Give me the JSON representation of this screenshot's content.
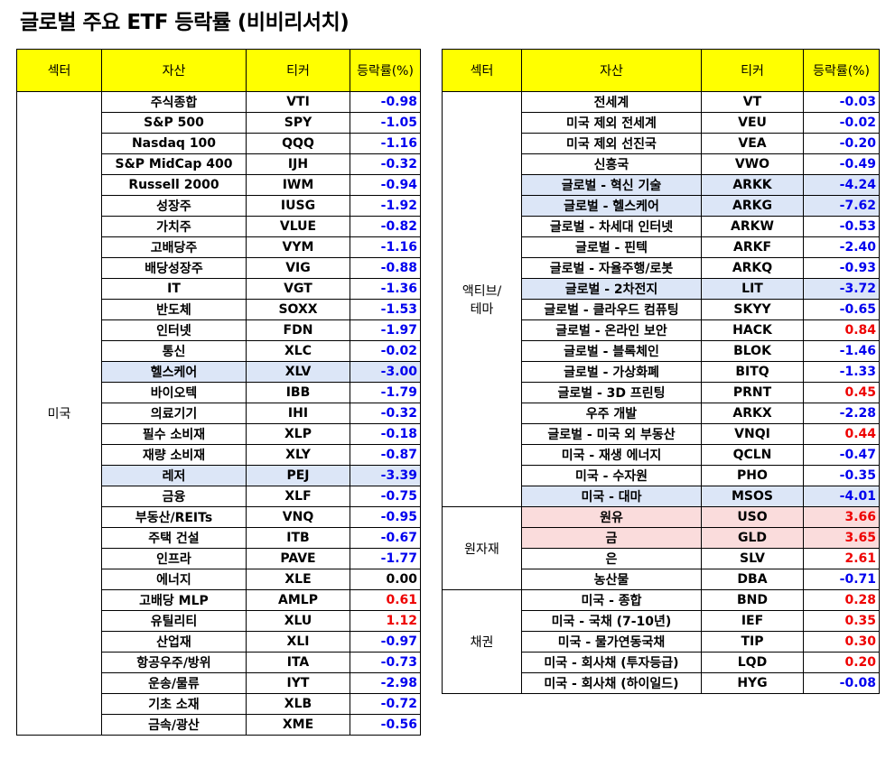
{
  "title": "글로벌 주요 ETF 등락률 (비비리서치)",
  "headers": {
    "sector": "섹터",
    "asset": "자산",
    "ticker": "티커",
    "change": "등락률(%)"
  },
  "left_table": {
    "groups": [
      {
        "sector": "미국",
        "rows": [
          {
            "asset": "주식종합",
            "ticker": "VTI",
            "value": "-0.98"
          },
          {
            "asset": "S&P 500",
            "ticker": "SPY",
            "value": "-1.05"
          },
          {
            "asset": "Nasdaq 100",
            "ticker": "QQQ",
            "value": "-1.16"
          },
          {
            "asset": "S&P MidCap 400",
            "ticker": "IJH",
            "value": "-0.32"
          },
          {
            "asset": "Russell 2000",
            "ticker": "IWM",
            "value": "-0.94"
          },
          {
            "asset": "성장주",
            "ticker": "IUSG",
            "value": "-1.92"
          },
          {
            "asset": "가치주",
            "ticker": "VLUE",
            "value": "-0.82"
          },
          {
            "asset": "고배당주",
            "ticker": "VYM",
            "value": "-1.16"
          },
          {
            "asset": "배당성장주",
            "ticker": "VIG",
            "value": "-0.88"
          },
          {
            "asset": "IT",
            "ticker": "VGT",
            "value": "-1.36"
          },
          {
            "asset": "반도체",
            "ticker": "SOXX",
            "value": "-1.53"
          },
          {
            "asset": "인터넷",
            "ticker": "FDN",
            "value": "-1.97"
          },
          {
            "asset": "통신",
            "ticker": "XLC",
            "value": "-0.02"
          },
          {
            "asset": "헬스케어",
            "ticker": "XLV",
            "value": "-3.00",
            "highlight": "blue"
          },
          {
            "asset": "바이오텍",
            "ticker": "IBB",
            "value": "-1.79"
          },
          {
            "asset": "의료기기",
            "ticker": "IHI",
            "value": "-0.32"
          },
          {
            "asset": "필수 소비재",
            "ticker": "XLP",
            "value": "-0.18"
          },
          {
            "asset": "재량 소비재",
            "ticker": "XLY",
            "value": "-0.87"
          },
          {
            "asset": "레저",
            "ticker": "PEJ",
            "value": "-3.39",
            "highlight": "blue"
          },
          {
            "asset": "금융",
            "ticker": "XLF",
            "value": "-0.75"
          },
          {
            "asset": "부동산/REITs",
            "ticker": "VNQ",
            "value": "-0.95"
          },
          {
            "asset": "주택 건설",
            "ticker": "ITB",
            "value": "-0.67"
          },
          {
            "asset": "인프라",
            "ticker": "PAVE",
            "value": "-1.77"
          },
          {
            "asset": "에너지",
            "ticker": "XLE",
            "value": "0.00"
          },
          {
            "asset": "고배당 MLP",
            "ticker": "AMLP",
            "value": "0.61"
          },
          {
            "asset": "유틸리티",
            "ticker": "XLU",
            "value": "1.12"
          },
          {
            "asset": "산업재",
            "ticker": "XLI",
            "value": "-0.97"
          },
          {
            "asset": "항공우주/방위",
            "ticker": "ITA",
            "value": "-0.73"
          },
          {
            "asset": "운송/물류",
            "ticker": "IYT",
            "value": "-2.98"
          },
          {
            "asset": "기초 소재",
            "ticker": "XLB",
            "value": "-0.72"
          },
          {
            "asset": "금속/광산",
            "ticker": "XME",
            "value": "-0.56"
          }
        ]
      }
    ]
  },
  "right_table": {
    "groups": [
      {
        "sector": "액티브/\n테마",
        "rows": [
          {
            "asset": "전세계",
            "ticker": "VT",
            "value": "-0.03"
          },
          {
            "asset": "미국 제외 전세계",
            "ticker": "VEU",
            "value": "-0.02"
          },
          {
            "asset": "미국 제외 선진국",
            "ticker": "VEA",
            "value": "-0.20"
          },
          {
            "asset": "신흥국",
            "ticker": "VWO",
            "value": "-0.49"
          },
          {
            "asset": "글로벌 - 혁신 기술",
            "ticker": "ARKK",
            "value": "-4.24",
            "highlight": "blue"
          },
          {
            "asset": "글로벌 - 헬스케어",
            "ticker": "ARKG",
            "value": "-7.62",
            "highlight": "blue"
          },
          {
            "asset": "글로벌 - 차세대 인터넷",
            "ticker": "ARKW",
            "value": "-0.53"
          },
          {
            "asset": "글로벌 - 핀텍",
            "ticker": "ARKF",
            "value": "-2.40"
          },
          {
            "asset": "글로벌 - 자율주행/로봇",
            "ticker": "ARKQ",
            "value": "-0.93"
          },
          {
            "asset": "글로벌 - 2차전지",
            "ticker": "LIT",
            "value": "-3.72",
            "highlight": "blue"
          },
          {
            "asset": "글로벌 - 클라우드 컴퓨팅",
            "ticker": "SKYY",
            "value": "-0.65"
          },
          {
            "asset": "글로벌 - 온라인 보안",
            "ticker": "HACK",
            "value": "0.84"
          },
          {
            "asset": "글로벌 - 블록체인",
            "ticker": "BLOK",
            "value": "-1.46"
          },
          {
            "asset": "글로벌 - 가상화폐",
            "ticker": "BITQ",
            "value": "-1.33"
          },
          {
            "asset": "글로벌 - 3D 프린팅",
            "ticker": "PRNT",
            "value": "0.45"
          },
          {
            "asset": "우주 개발",
            "ticker": "ARKX",
            "value": "-2.28"
          },
          {
            "asset": "글로벌 - 미국 외 부동산",
            "ticker": "VNQI",
            "value": "0.44"
          },
          {
            "asset": "미국 - 재생 에너지",
            "ticker": "QCLN",
            "value": "-0.47"
          },
          {
            "asset": "미국 - 수자원",
            "ticker": "PHO",
            "value": "-0.35"
          },
          {
            "asset": "미국 - 대마",
            "ticker": "MSOS",
            "value": "-4.01",
            "highlight": "blue"
          }
        ]
      },
      {
        "sector": "원자재",
        "rows": [
          {
            "asset": "원유",
            "ticker": "USO",
            "value": "3.66",
            "highlight": "pink"
          },
          {
            "asset": "금",
            "ticker": "GLD",
            "value": "3.65",
            "highlight": "pink"
          },
          {
            "asset": "은",
            "ticker": "SLV",
            "value": "2.61"
          },
          {
            "asset": "농산물",
            "ticker": "DBA",
            "value": "-0.71"
          }
        ]
      },
      {
        "sector": "채권",
        "rows": [
          {
            "asset": "미국 - 종합",
            "ticker": "BND",
            "value": "0.28"
          },
          {
            "asset": "미국 - 국채 (7-10년)",
            "ticker": "IEF",
            "value": "0.35"
          },
          {
            "asset": "미국 - 물가연동국채",
            "ticker": "TIP",
            "value": "0.30"
          },
          {
            "asset": "미국 - 회사채 (투자등급)",
            "ticker": "LQD",
            "value": "0.20"
          },
          {
            "asset": "미국 - 회사채 (하이일드)",
            "ticker": "HYG",
            "value": "-0.08"
          }
        ]
      }
    ]
  },
  "colors": {
    "negative": "#0000ee",
    "positive": "#ee0000",
    "header_bg": "#ffff00",
    "highlight_blue": "#dce6f7",
    "highlight_pink": "#fadcdc"
  }
}
